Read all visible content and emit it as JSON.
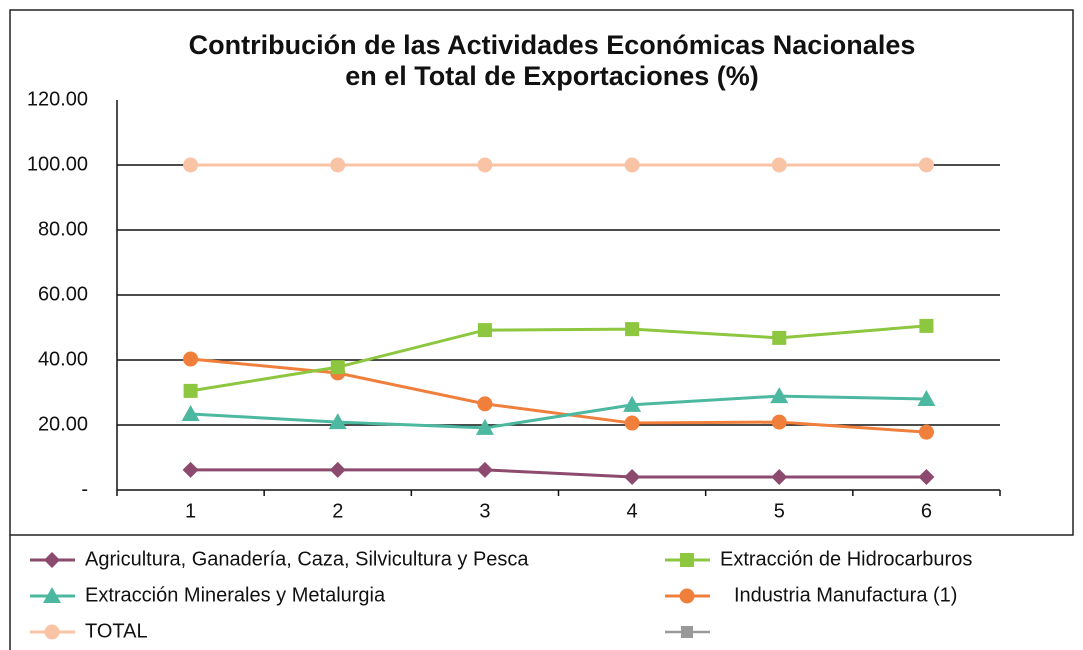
{
  "chart_data": {
    "type": "line",
    "title": [
      "Contribución de las Actividades Económicas Nacionales",
      "en el Total de Exportaciones (%)"
    ],
    "categories": [
      "1",
      "2",
      "3",
      "4",
      "5",
      "6"
    ],
    "series": [
      {
        "name": "Agricultura, Ganadería, Caza, Silvicultura y Pesca",
        "color": "#8b4a6e",
        "marker": "diamond",
        "values": [
          6.2,
          6.2,
          6.2,
          4.0,
          4.0,
          4.0
        ]
      },
      {
        "name": "Extracción de Hidrocarburos",
        "color": "#8dc63f",
        "marker": "square",
        "values": [
          30.5,
          37.8,
          49.2,
          49.5,
          46.8,
          50.5
        ]
      },
      {
        "name": "Extracción Minerales y Metalurgia",
        "color": "#4cb8a0",
        "marker": "triangle",
        "values": [
          23.4,
          20.9,
          19.1,
          26.2,
          28.9,
          28.0
        ]
      },
      {
        "name": "Industria Manufactura (1)",
        "color": "#f07f3c",
        "marker": "circle",
        "values": [
          40.3,
          36.0,
          26.5,
          20.6,
          20.9,
          17.8
        ]
      },
      {
        "name": "TOTAL",
        "color": "#f9c3a6",
        "marker": "circle",
        "values": [
          100,
          100,
          100,
          100,
          100,
          100
        ]
      }
    ],
    "ylim": [
      0,
      120
    ],
    "yticks": [
      {
        "value": 0,
        "label": "-"
      },
      {
        "value": 20,
        "label": "20.00"
      },
      {
        "value": 40,
        "label": "40.00"
      },
      {
        "value": 60,
        "label": "60.00"
      },
      {
        "value": 80,
        "label": "80.00"
      },
      {
        "value": 100,
        "label": "100.00"
      },
      {
        "value": 120,
        "label": "120.00"
      }
    ],
    "grid": true
  }
}
